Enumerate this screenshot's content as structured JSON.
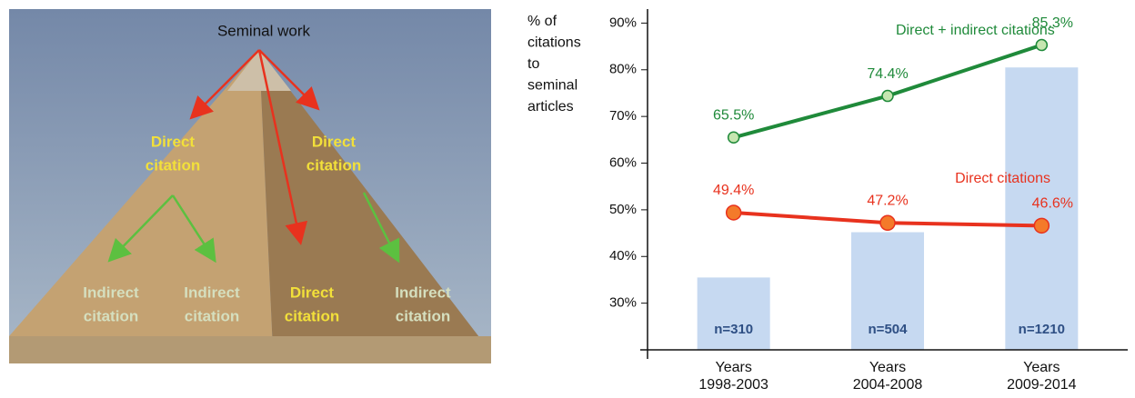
{
  "pyramid": {
    "labels": [
      {
        "lines": [
          "Seminal work"
        ]
      },
      {
        "lines": [
          "Direct",
          "citation"
        ]
      },
      {
        "lines": [
          "Direct",
          "citation"
        ]
      },
      {
        "lines": [
          "Indirect",
          "citation"
        ]
      },
      {
        "lines": [
          "Indirect",
          "citation"
        ]
      },
      {
        "lines": [
          "Direct",
          "citation"
        ]
      },
      {
        "lines": [
          "Indirect",
          "citation"
        ]
      }
    ]
  },
  "chart_data": {
    "type": "bar-line",
    "ylabel": [
      "% of",
      "citations",
      "to",
      "seminal",
      "articles"
    ],
    "categories": [
      [
        "Years",
        "1998-2003"
      ],
      [
        "Years",
        "2004-2008"
      ],
      [
        "Years",
        "2009-2014"
      ]
    ],
    "ylim": [
      20,
      93
    ],
    "yticks": [
      {
        "value": 30,
        "label": "30%"
      },
      {
        "value": 40,
        "label": "40%"
      },
      {
        "value": 50,
        "label": "50%"
      },
      {
        "value": 60,
        "label": "60%"
      },
      {
        "value": 70,
        "label": "70%"
      },
      {
        "value": 80,
        "label": "80%"
      },
      {
        "value": 90,
        "label": "90%"
      }
    ],
    "y2lim": [
      0,
      1460
    ],
    "series": [
      {
        "type": "bar",
        "axis": "y2",
        "color": "#c6d9f1",
        "values": [
          310,
          504,
          1210
        ],
        "value_labels": [
          "n=310",
          "n=504",
          "n=1210"
        ]
      },
      {
        "type": "line",
        "name": "Direct + indirect citations",
        "color": "#1f8a3a",
        "marker_color": "#c6e6b0",
        "values": [
          65.5,
          74.4,
          85.3
        ],
        "value_labels": [
          "65.5%",
          "74.4%",
          "85.3%"
        ]
      },
      {
        "type": "line",
        "name": "Direct citations",
        "color": "#e8321e",
        "marker_color": "#f47a2a",
        "values": [
          49.4,
          47.2,
          46.6
        ],
        "value_labels": [
          "49.4%",
          "47.2%",
          "46.6%"
        ]
      }
    ]
  }
}
